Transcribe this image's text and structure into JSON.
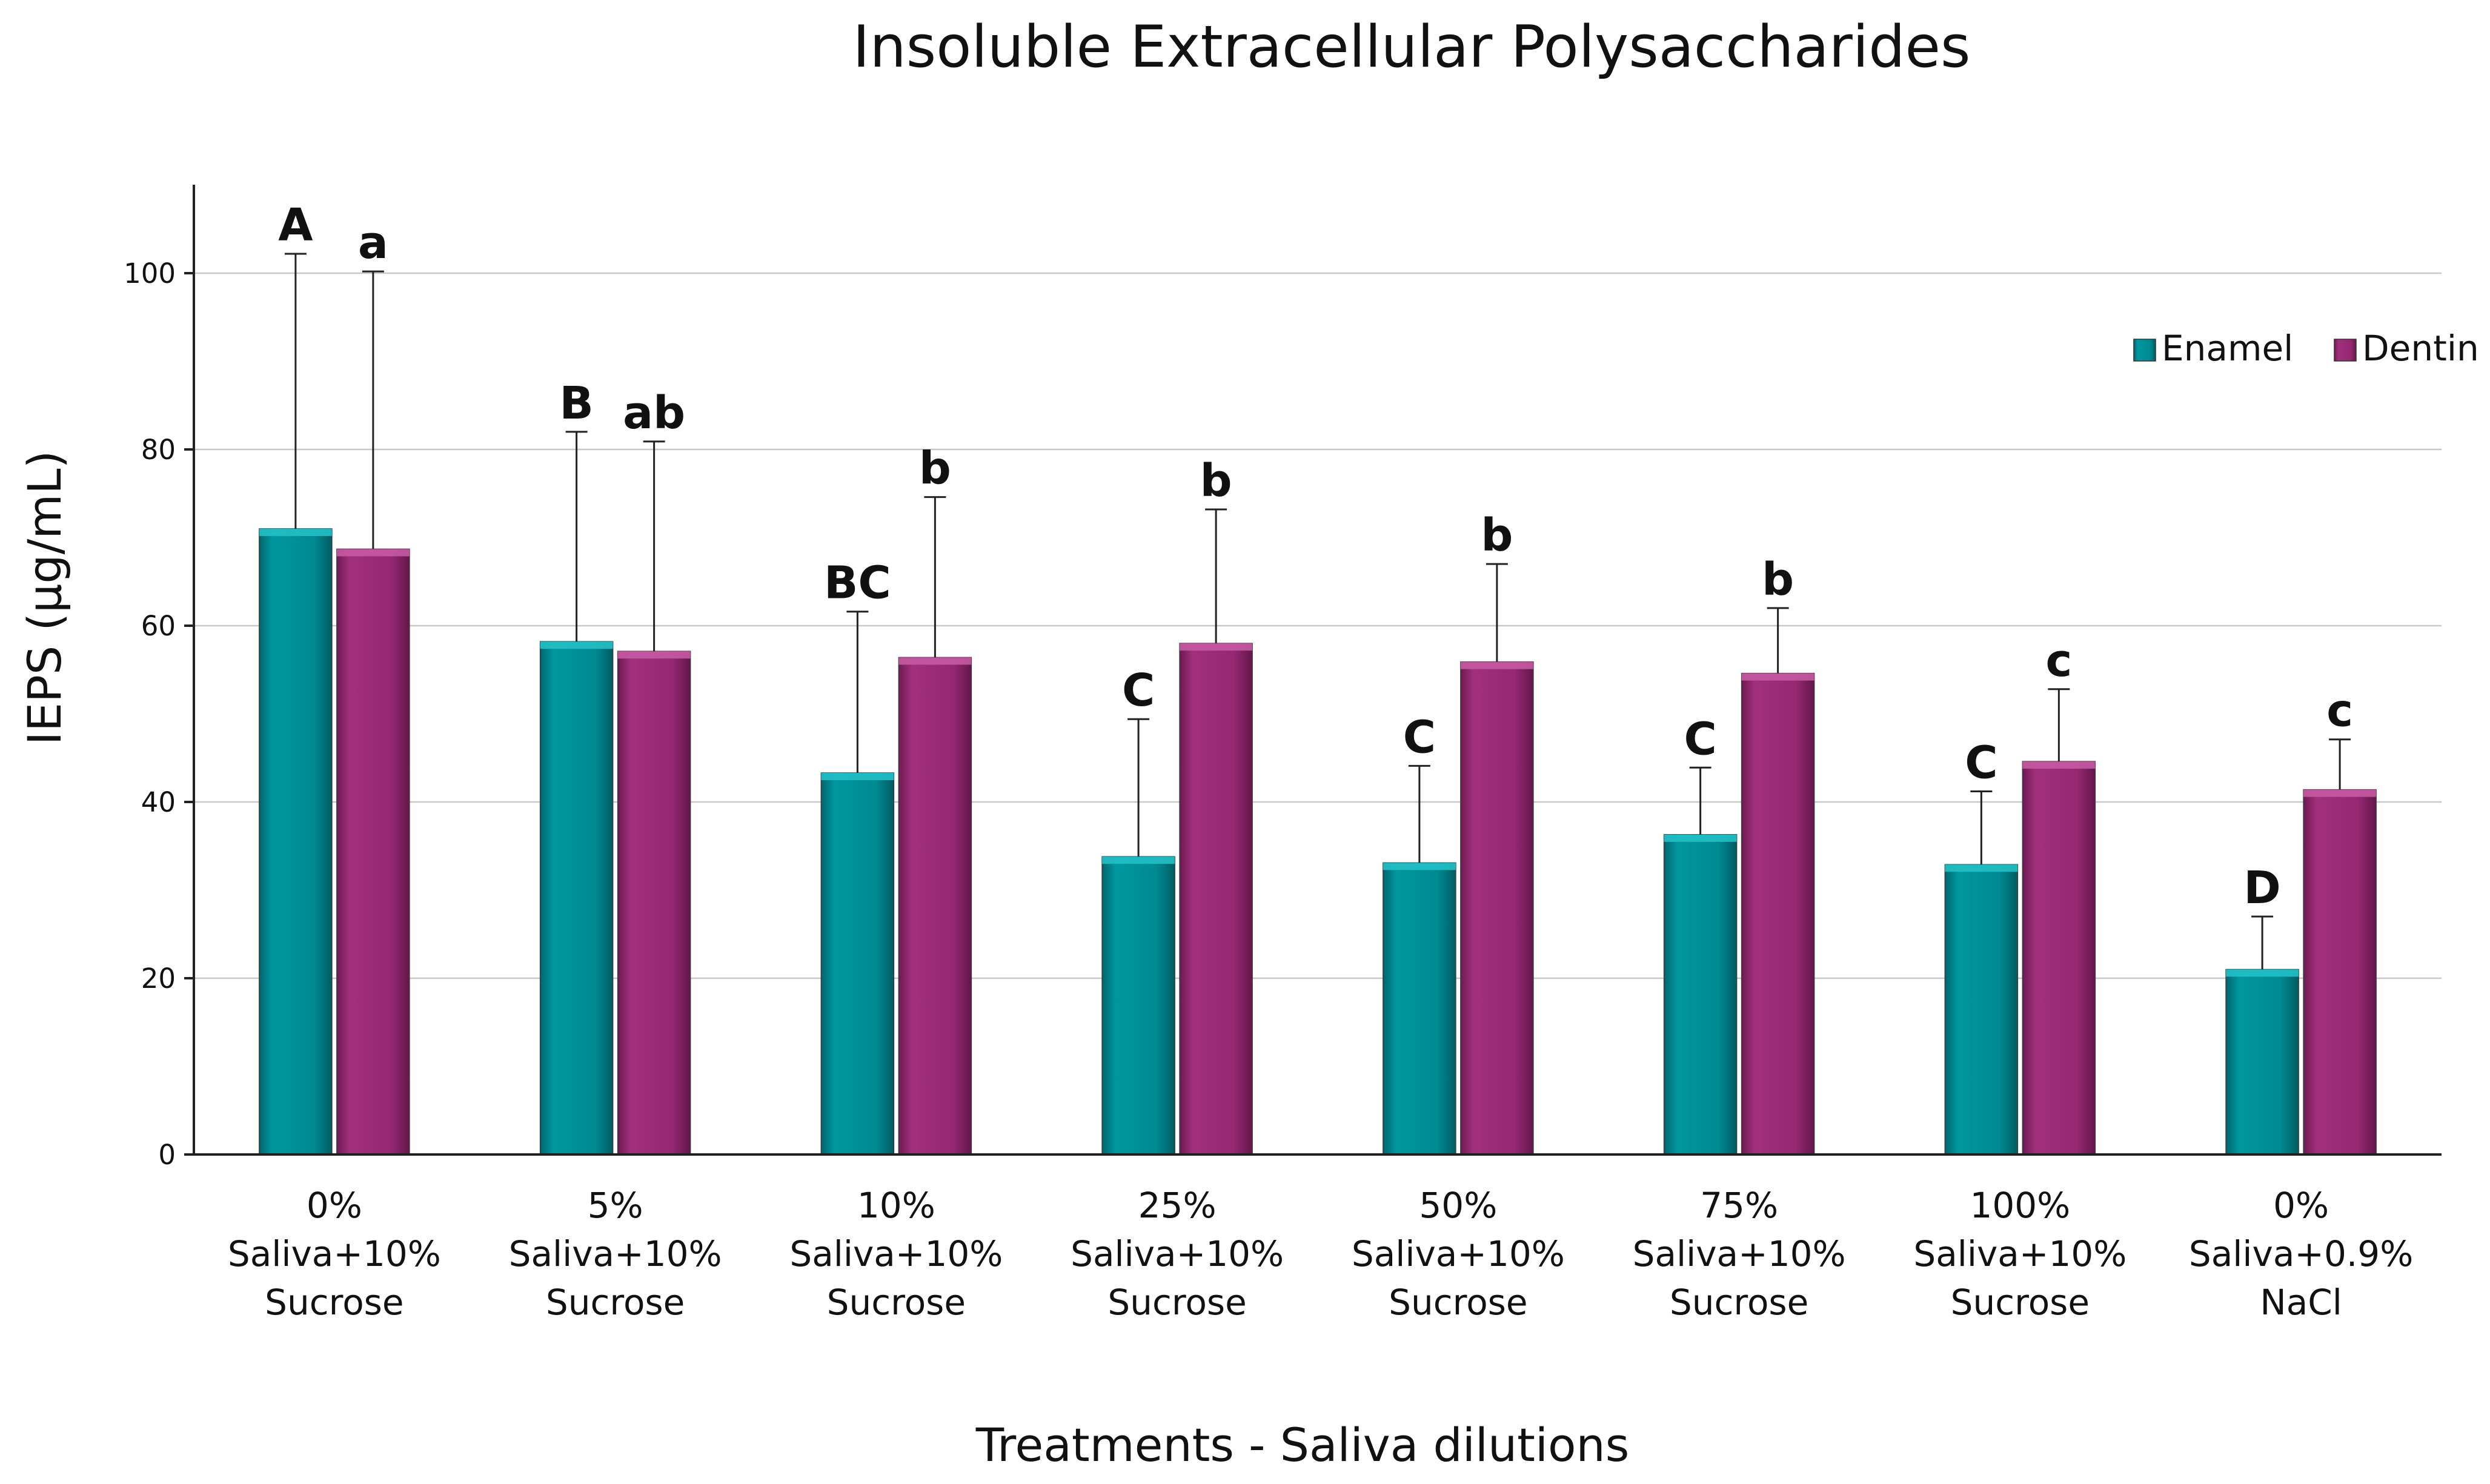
{
  "chart_data": {
    "type": "bar",
    "title": "Insoluble Extracellular Polysaccharides",
    "xlabel": "Treatments - Saliva dilutions",
    "ylabel": "IEPS (µg/mL)",
    "ylim": [
      0,
      110
    ],
    "yticks": [
      0,
      20,
      40,
      60,
      80,
      100
    ],
    "grid": true,
    "legend_position": "top-right",
    "categories": [
      [
        "0%",
        "Saliva+10%",
        "Sucrose"
      ],
      [
        "5%",
        "Saliva+10%",
        "Sucrose"
      ],
      [
        "10%",
        "Saliva+10%",
        "Sucrose"
      ],
      [
        "25%",
        "Saliva+10%",
        "Sucrose"
      ],
      [
        "50%",
        "Saliva+10%",
        "Sucrose"
      ],
      [
        "75%",
        "Saliva+10%",
        "Sucrose"
      ],
      [
        "100%",
        "Saliva+10%",
        "Sucrose"
      ],
      [
        "0%",
        "Saliva+0.9%",
        "NaCl"
      ]
    ],
    "series": [
      {
        "name": "Enamel",
        "color": "#008a92",
        "values": [
          71,
          58.2,
          43.3,
          33.8,
          33.1,
          36.3,
          32.9,
          21
        ],
        "error_upper": [
          102.2,
          82,
          61.6,
          49.4,
          44.1,
          43.9,
          41.2,
          27
        ],
        "letters": [
          "A",
          "B",
          "BC",
          "C",
          "C",
          "C",
          "C",
          "D"
        ]
      },
      {
        "name": "Dentin",
        "color": "#952872",
        "values": [
          68.7,
          57.1,
          56.4,
          58,
          55.9,
          54.6,
          44.6,
          41.4
        ],
        "error_upper": [
          100.2,
          80.9,
          74.6,
          73.2,
          67,
          62,
          52.8,
          47.1
        ],
        "letters": [
          "a",
          "ab",
          "b",
          "b",
          "b",
          "b",
          "c",
          "c"
        ]
      }
    ]
  }
}
